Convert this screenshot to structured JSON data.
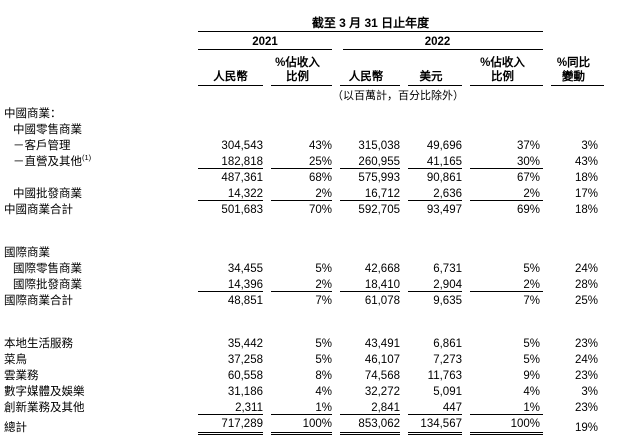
{
  "table": {
    "caption": "截至 3 月 31 日止年度",
    "years": {
      "y2021": "2021",
      "y2022": "2022"
    },
    "columns": {
      "rmb_2021": "人民幣",
      "pct_2021": "%佔收入\n比例",
      "rmb_2022": "人民幣",
      "usd_2022": "美元",
      "pct_2022": "%佔收入\n比例",
      "yoy": "%同比\n變動"
    },
    "note": "（以百萬計，百分比除外）",
    "rows": [
      {
        "label": "中國商業：",
        "indent": 0,
        "values": [
          "",
          "",
          "",
          "",
          "",
          ""
        ]
      },
      {
        "label": "中國零售商業",
        "indent": 1,
        "values": [
          "",
          "",
          "",
          "",
          "",
          ""
        ]
      },
      {
        "label": "－客戶管理",
        "indent": 1,
        "values": [
          "304,543",
          "43%",
          "315,038",
          "49,696",
          "37%",
          "3%"
        ]
      },
      {
        "label": "－直營及其他",
        "sup": "(1)",
        "indent": 1,
        "underline": "single",
        "values": [
          "182,818",
          "25%",
          "260,955",
          "41,165",
          "30%",
          "43%"
        ]
      },
      {
        "label": "",
        "indent": 0,
        "values": [
          "487,361",
          "68%",
          "575,993",
          "90,861",
          "67%",
          "18%"
        ]
      },
      {
        "label": "中國批發商業",
        "indent": 1,
        "underline": "single",
        "values": [
          "14,322",
          "2%",
          "16,712",
          "2,636",
          "2%",
          "17%"
        ]
      },
      {
        "label": "中國商業合計",
        "indent": 0,
        "values": [
          "501,683",
          "70%",
          "592,705",
          "93,497",
          "69%",
          "18%"
        ]
      },
      {
        "label": "國際商業",
        "indent": 0,
        "spacer_before": true,
        "values": [
          "",
          "",
          "",
          "",
          "",
          ""
        ]
      },
      {
        "label": "國際零售商業",
        "indent": 1,
        "values": [
          "34,455",
          "5%",
          "42,668",
          "6,731",
          "5%",
          "24%"
        ]
      },
      {
        "label": "國際批發商業",
        "indent": 1,
        "underline": "single",
        "values": [
          "14,396",
          "2%",
          "18,410",
          "2,904",
          "2%",
          "28%"
        ]
      },
      {
        "label": "國際商業合計",
        "indent": 0,
        "values": [
          "48,851",
          "7%",
          "61,078",
          "9,635",
          "7%",
          "25%"
        ]
      },
      {
        "label": "本地生活服務",
        "indent": 0,
        "spacer_before": true,
        "values": [
          "35,442",
          "5%",
          "43,491",
          "6,861",
          "5%",
          "23%"
        ]
      },
      {
        "label": "菜鳥",
        "indent": 0,
        "values": [
          "37,258",
          "5%",
          "46,107",
          "7,273",
          "5%",
          "24%"
        ]
      },
      {
        "label": "雲業務",
        "indent": 0,
        "values": [
          "60,558",
          "8%",
          "74,568",
          "11,763",
          "9%",
          "23%"
        ]
      },
      {
        "label": "數字媒體及娛樂",
        "indent": 0,
        "values": [
          "31,186",
          "4%",
          "32,272",
          "5,091",
          "4%",
          "3%"
        ]
      },
      {
        "label": "創新業務及其他",
        "indent": 0,
        "underline": "single",
        "values": [
          "2,311",
          "1%",
          "2,841",
          "447",
          "1%",
          "23%"
        ]
      },
      {
        "label": "總計",
        "indent": 0,
        "underline": "double",
        "values": [
          "717,289",
          "100%",
          "853,062",
          "134,567",
          "100%",
          "19%"
        ]
      }
    ]
  }
}
